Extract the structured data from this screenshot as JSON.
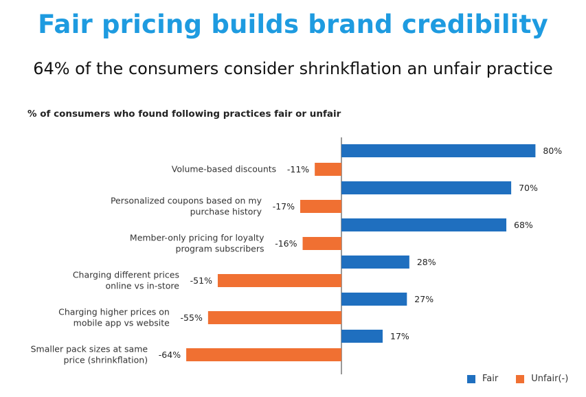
{
  "header": {
    "title": "Fair pricing builds brand credibility",
    "subtitle": "64% of the consumers consider shrinkflation an unfair practice"
  },
  "colors": {
    "fair": "#1f6fbf",
    "unfair": "#f07032",
    "title": "#1e9be0"
  },
  "chart_data": {
    "type": "bar",
    "orientation": "horizontal",
    "title": "% of consumers who found following practices fair or unfair",
    "categories": [
      [
        "Volume-based discounts"
      ],
      [
        "Personalized coupons based on my",
        "purchase history"
      ],
      [
        "Member-only pricing for loyalty",
        "program subscribers"
      ],
      [
        "Charging different prices",
        "online vs in-store"
      ],
      [
        "Charging higher prices on",
        "mobile app vs website"
      ],
      [
        "Smaller pack sizes at same",
        "price (shrinkflation)"
      ]
    ],
    "series": [
      {
        "name": "Fair",
        "values": [
          80,
          70,
          68,
          28,
          27,
          17
        ],
        "labels": [
          "80%",
          "70%",
          "68%",
          "28%",
          "27%",
          "17%"
        ]
      },
      {
        "name": "Unfair(-)",
        "values": [
          -11,
          -17,
          -16,
          -51,
          -55,
          -64
        ],
        "labels": [
          "-11%",
          "-17%",
          "-16%",
          "-51%",
          "-55%",
          "-64%"
        ]
      }
    ],
    "xlim": [
      -64,
      80
    ],
    "legend": {
      "position": "bottom-right",
      "items": [
        "Fair",
        "Unfair(-)"
      ]
    }
  }
}
